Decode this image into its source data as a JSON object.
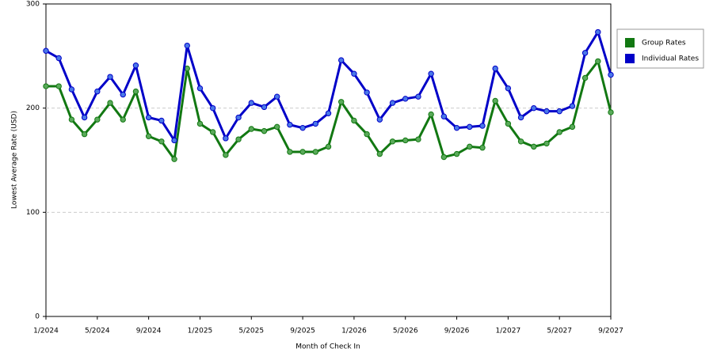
{
  "chart_data": {
    "type": "line",
    "x_label": "Month of Check In",
    "y_label": "Lowest Average Rate (USD)",
    "categories": [
      "1/2024",
      null,
      null,
      null,
      "5/2024",
      null,
      null,
      null,
      "9/2024",
      null,
      null,
      null,
      "1/2025",
      null,
      null,
      null,
      "5/2025",
      null,
      null,
      null,
      "9/2025",
      null,
      null,
      null,
      "1/2026",
      null,
      null,
      null,
      "5/2026",
      null,
      null,
      null,
      "9/2026",
      null,
      null,
      null,
      "1/2027",
      null,
      null,
      null,
      "5/2027",
      null,
      null,
      null,
      "9/2027"
    ],
    "series": [
      {
        "name": "Group Rates",
        "color": "#127812",
        "marker": "#5aaa5a",
        "values": [
          221,
          221,
          189,
          175,
          189,
          205,
          189,
          216,
          173,
          168,
          151,
          238,
          185,
          177,
          155,
          170,
          180,
          178,
          182,
          158,
          158,
          158,
          163,
          206,
          188,
          175,
          156,
          168,
          169,
          170,
          194,
          153,
          156,
          163,
          162,
          207,
          185,
          168,
          163,
          166,
          177,
          182,
          229,
          245,
          196
        ]
      },
      {
        "name": "Individual Rates",
        "color": "#0000c8",
        "marker": "#4a78e8",
        "values": [
          255,
          248,
          218,
          191,
          216,
          230,
          213,
          241,
          191,
          188,
          169,
          260,
          219,
          200,
          171,
          191,
          205,
          201,
          211,
          184,
          181,
          185,
          195,
          246,
          233,
          215,
          189,
          205,
          209,
          211,
          233,
          192,
          181,
          182,
          183,
          238,
          219,
          191,
          200,
          197,
          197,
          202,
          253,
          273,
          232
        ]
      }
    ],
    "ylim": [
      0,
      300
    ],
    "yticks": [
      0,
      100,
      200,
      300
    ],
    "grid": true,
    "legend": "right"
  }
}
